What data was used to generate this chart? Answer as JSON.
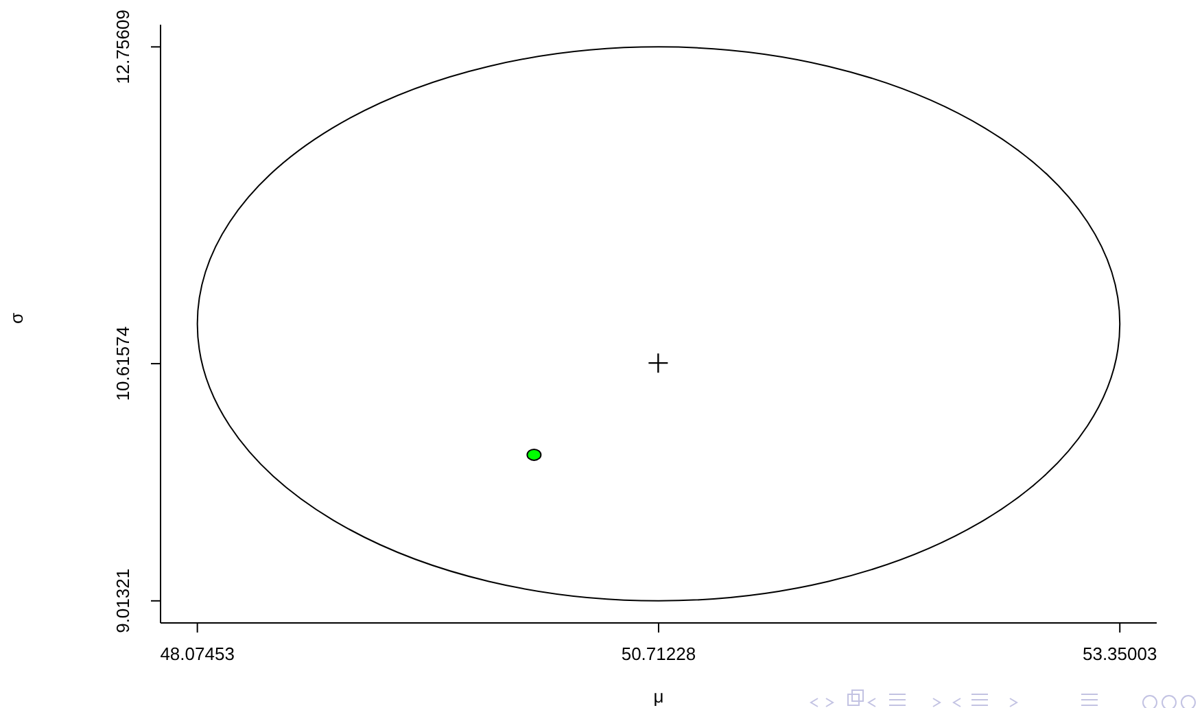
{
  "chart_data": {
    "type": "scatter",
    "xlabel": "μ",
    "ylabel": "σ",
    "xlim": [
      47.864,
      53.561
    ],
    "ylim": [
      8.864,
      12.906
    ],
    "xticks": [
      48.07453,
      50.71228,
      53.35003
    ],
    "yticks": [
      9.01321,
      10.61574,
      12.75609
    ],
    "grid": false,
    "series": [
      {
        "color": "#000000",
        "marker": "cross",
        "x": [
          50.71
        ],
        "values": [
          10.62
        ]
      },
      {
        "type": "scatter",
        "color": "#00ff00",
        "marker": "circle",
        "x": [
          50.0
        ],
        "values": [
          10.0
        ]
      }
    ]
  }
}
